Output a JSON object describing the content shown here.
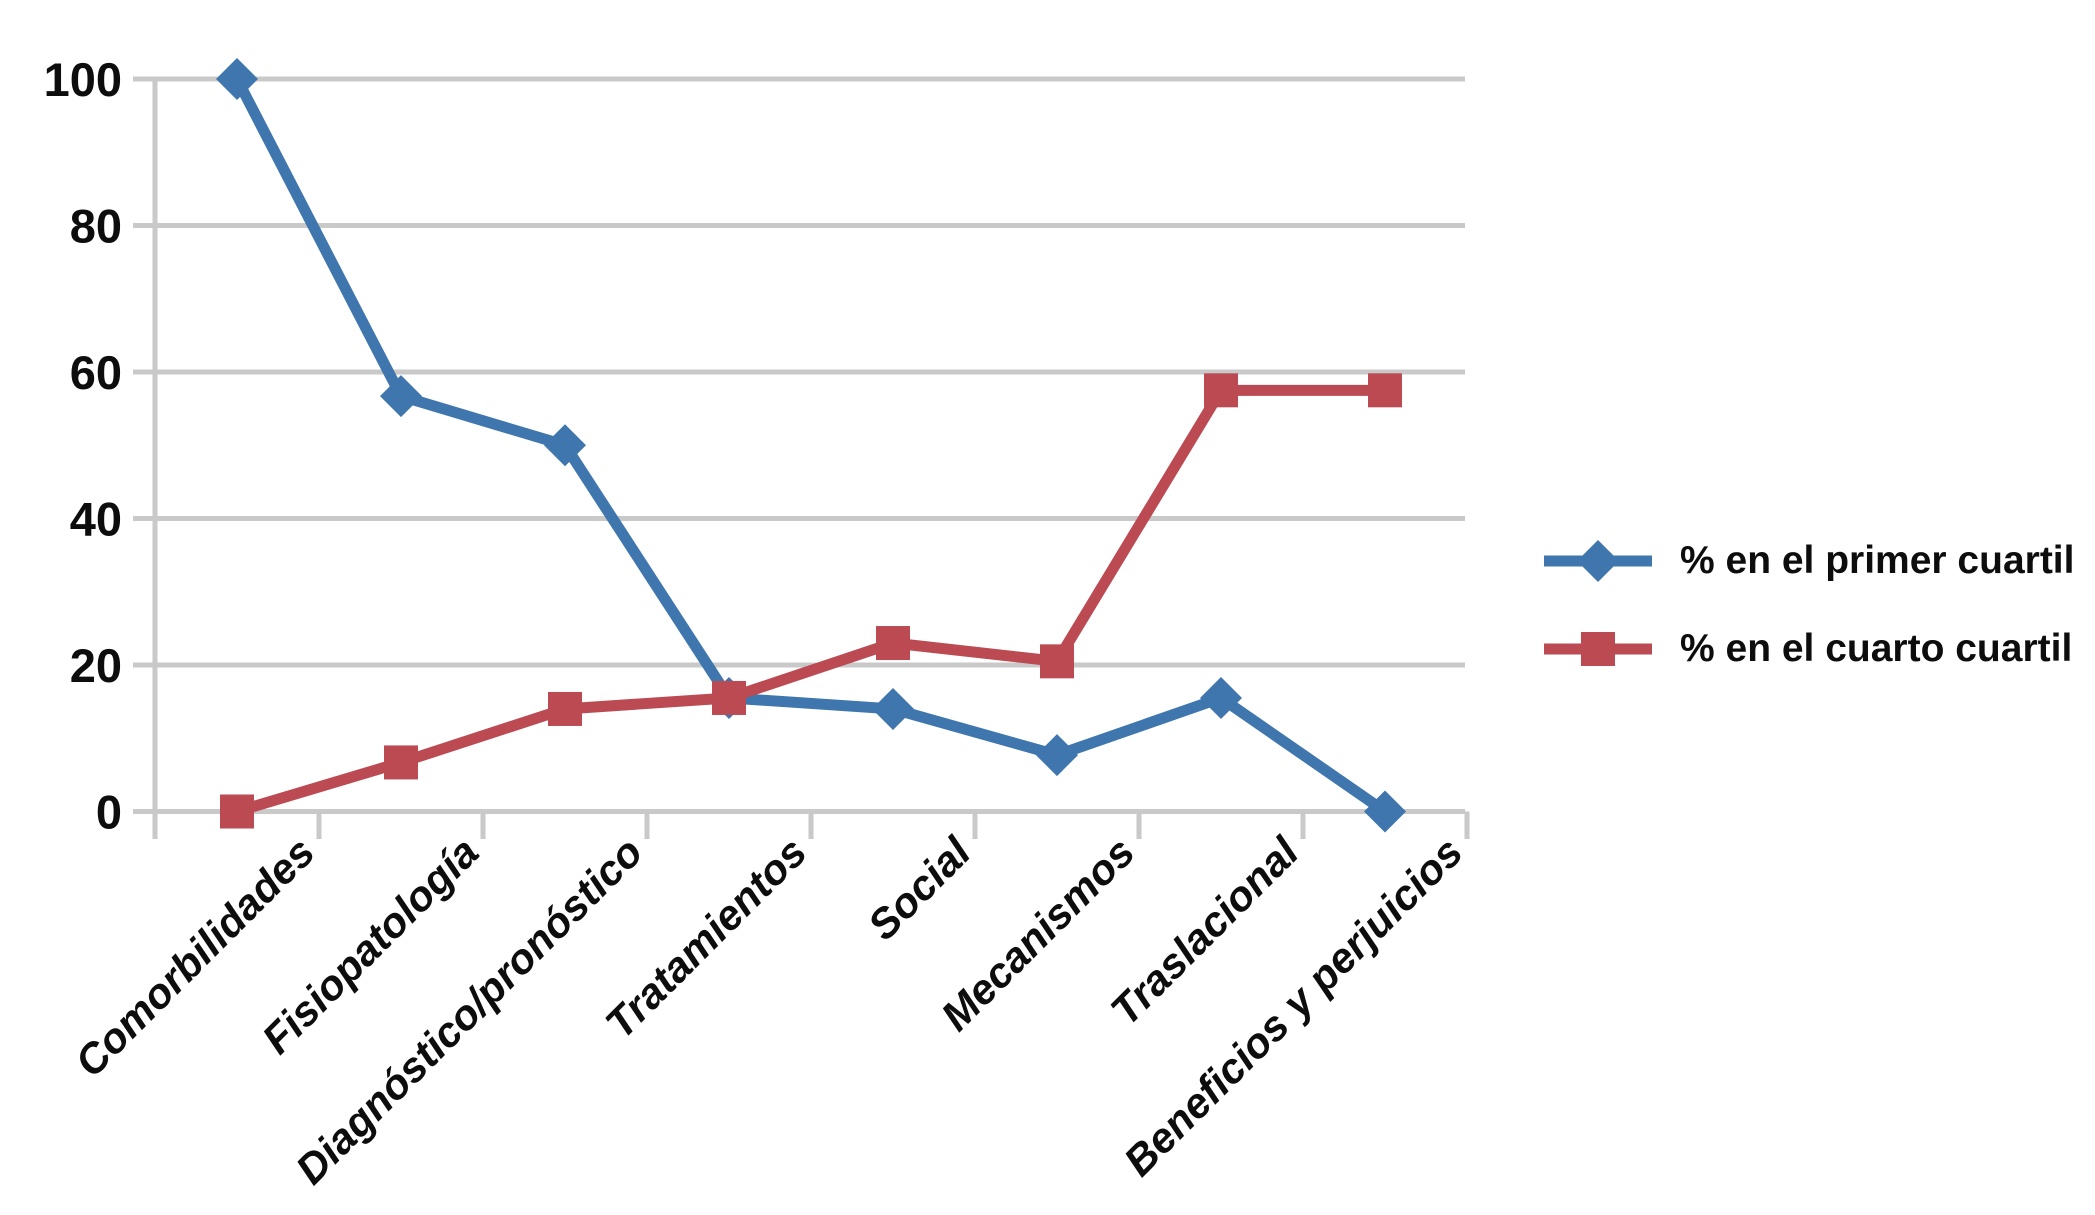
{
  "chart_data": {
    "type": "line",
    "title": "",
    "xlabel": "",
    "ylabel": "",
    "categories": [
      "Comorbilidades",
      "Fisiopatología",
      "Diagnóstico/pronóstico",
      "Tratamientos",
      "Social",
      "Mecanismos",
      "Traslacional",
      "Beneficios y perjuicios"
    ],
    "series": [
      {
        "name": "% en el primer cuartil",
        "marker": "diamond",
        "color": "#3E76AD",
        "values": [
          100,
          56.7,
          50,
          15.5,
          14,
          7.7,
          15.5,
          0
        ]
      },
      {
        "name": "% en el cuarto cuartil",
        "marker": "square",
        "color": "#BB4A52",
        "values": [
          0,
          6.7,
          14,
          15.5,
          23,
          20.5,
          57.5,
          57.5
        ]
      }
    ],
    "yticks": [
      0,
      20,
      40,
      60,
      80,
      100
    ],
    "ylim": [
      0,
      100
    ],
    "grid": "horizontal",
    "gridline_color": "#C9C9C9",
    "axis_color": "#C9C9C9",
    "text_color": "#0d0d0d",
    "legend_position": "right",
    "background": "#FFFFFF"
  }
}
